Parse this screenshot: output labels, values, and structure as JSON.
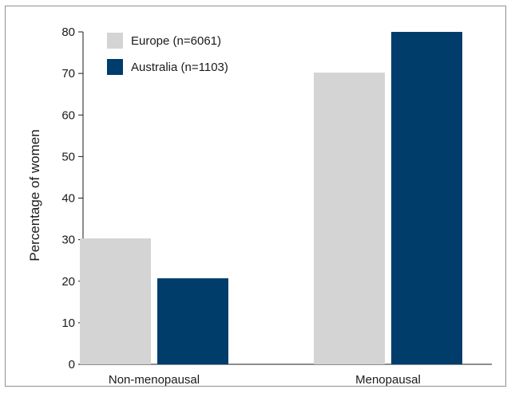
{
  "chart_data": {
    "type": "bar",
    "categories": [
      "Non-menopausal",
      "Menopausal"
    ],
    "series": [
      {
        "name": "Europe (n=6061)",
        "values": [
          30.3,
          70.2
        ],
        "color": "#d4d4d4"
      },
      {
        "name": "Australia (n=1103)",
        "values": [
          20.7,
          80.0
        ],
        "color": "#003d6b"
      }
    ],
    "xlabel": "",
    "ylabel": "Percentage of women",
    "ylim": [
      0,
      80
    ],
    "yticks": [
      0,
      10,
      20,
      30,
      40,
      50,
      60,
      70,
      80
    ],
    "grid": false,
    "legend_position": "top-left"
  }
}
